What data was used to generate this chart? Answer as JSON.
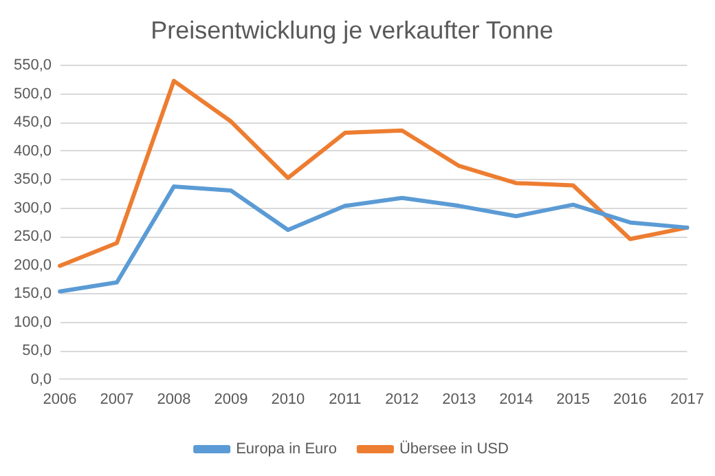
{
  "chart_data": {
    "type": "line",
    "title": "Preisentwicklung je verkaufter Tonne",
    "categories": [
      "2006",
      "2007",
      "2008",
      "2009",
      "2010",
      "2011",
      "2012",
      "2013",
      "2014",
      "2015",
      "2016",
      "2017"
    ],
    "series": [
      {
        "name": "Europa in Euro",
        "color": "#5b9bd5",
        "values": [
          154,
          170,
          338,
          331,
          262,
          304,
          318,
          304,
          286,
          306,
          275,
          266
        ]
      },
      {
        "name": "Übersee in USD",
        "color": "#ed7d31",
        "values": [
          199,
          239,
          523,
          452,
          353,
          432,
          436,
          374,
          344,
          340,
          246,
          266
        ]
      }
    ],
    "ylim": [
      0,
      550
    ],
    "yticks": [
      {
        "value": 0,
        "label": "0,0"
      },
      {
        "value": 50,
        "label": "50,0"
      },
      {
        "value": 100,
        "label": "100,0"
      },
      {
        "value": 150,
        "label": "150,0"
      },
      {
        "value": 200,
        "label": "200,0"
      },
      {
        "value": 250,
        "label": "250,0"
      },
      {
        "value": 300,
        "label": "300,0"
      },
      {
        "value": 350,
        "label": "350,0"
      },
      {
        "value": 400,
        "label": "400,0"
      },
      {
        "value": 450,
        "label": "450,0"
      },
      {
        "value": 500,
        "label": "500,0"
      },
      {
        "value": 550,
        "label": "550,0"
      }
    ],
    "grid": "y",
    "legend": "bottom",
    "marker": "none",
    "line_style": "solid"
  }
}
